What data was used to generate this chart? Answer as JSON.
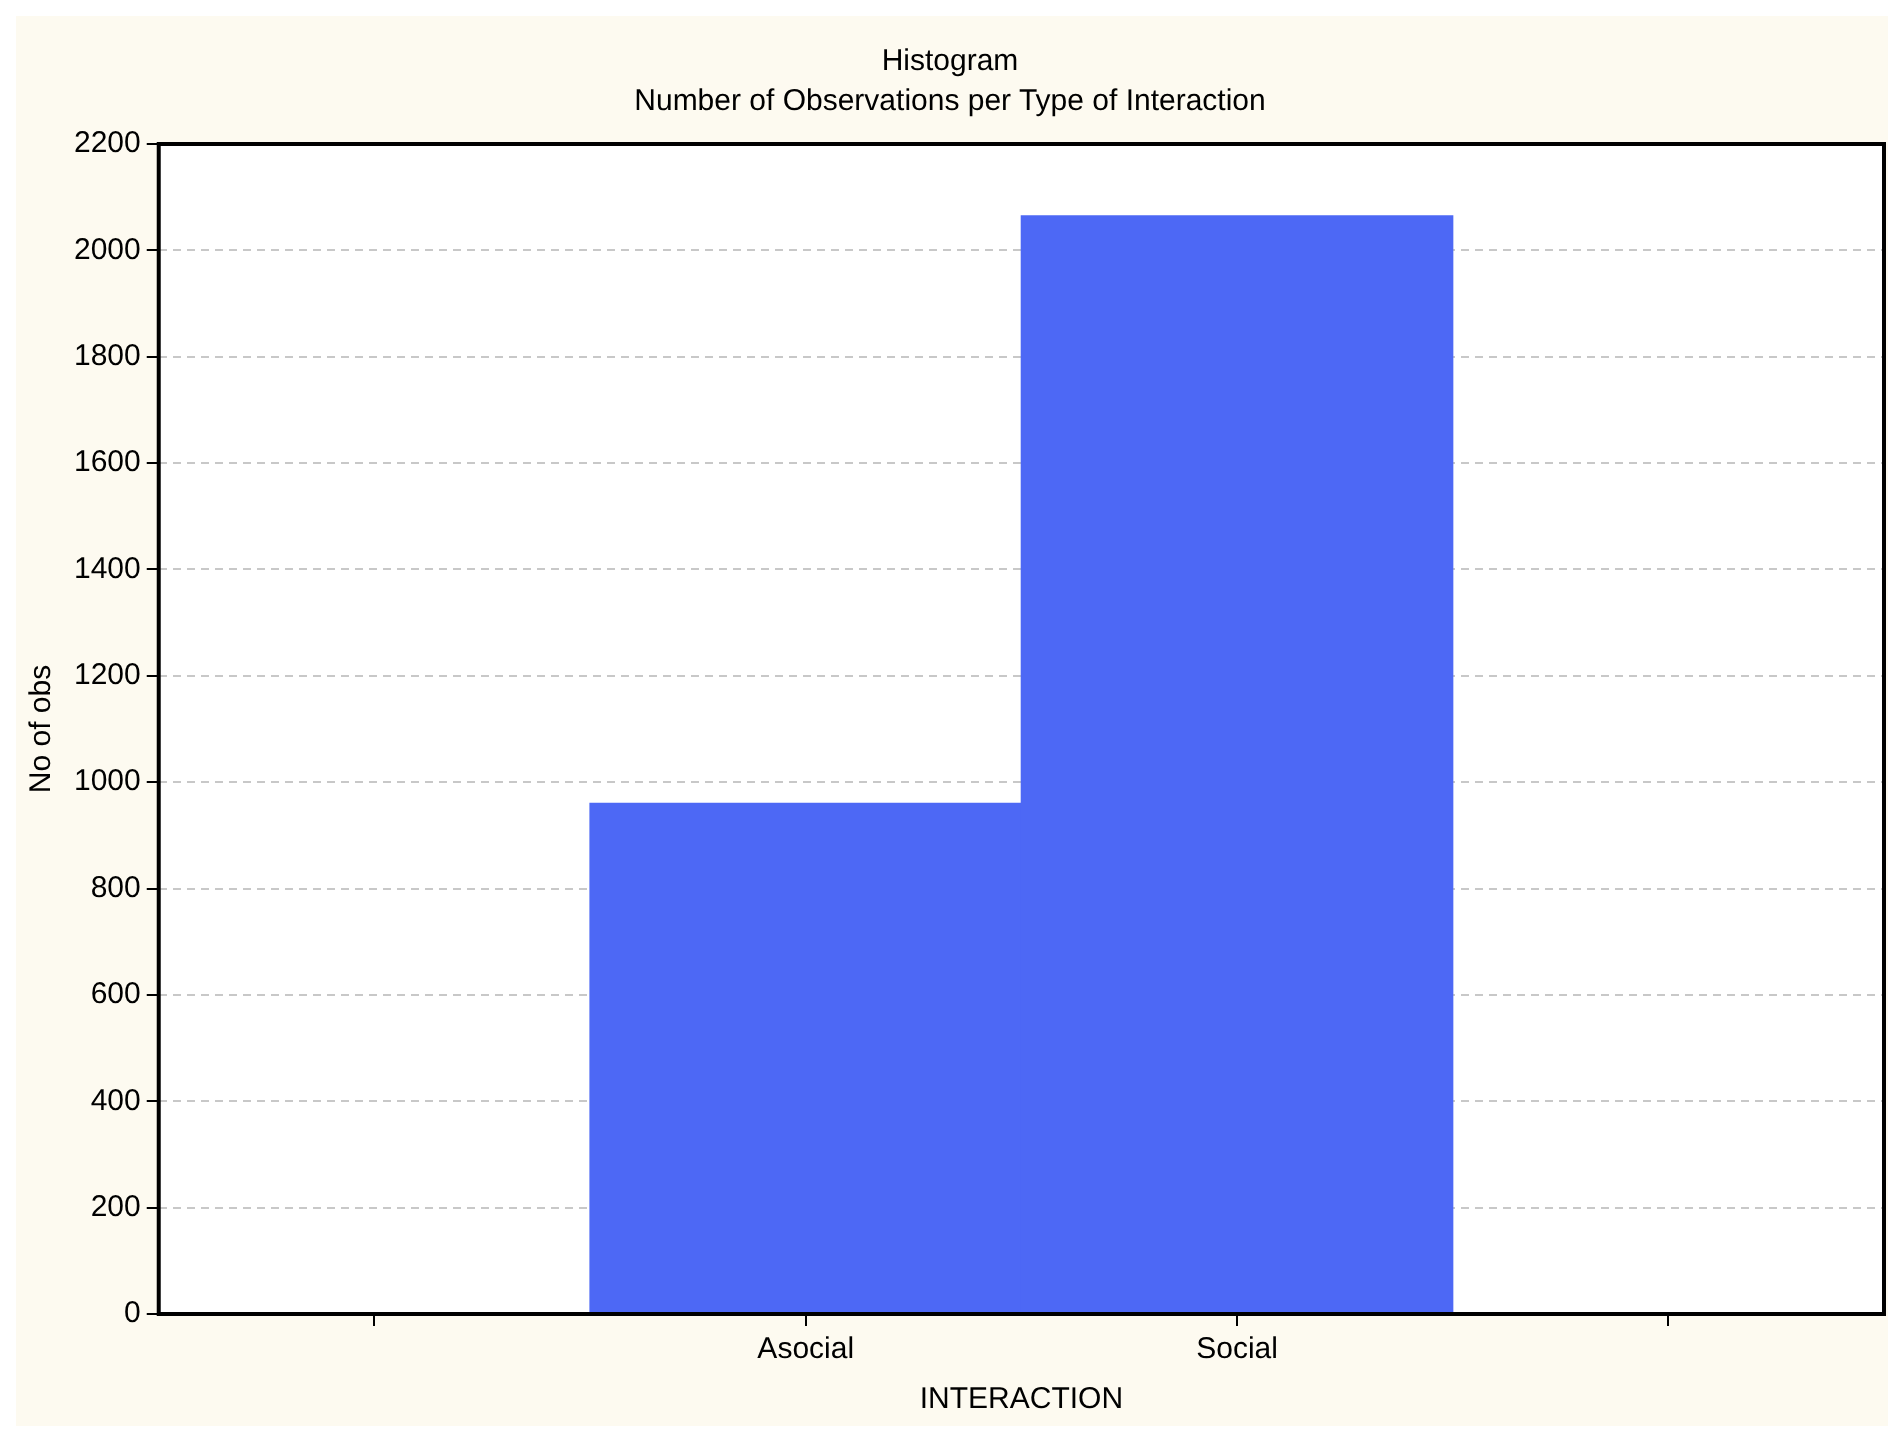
{
  "chart_data": {
    "type": "bar",
    "title": "Histogram",
    "subtitle": "Number of Observations per Type of Interaction",
    "xlabel": "INTERACTION",
    "ylabel": "No of obs",
    "categories": [
      null,
      "Asocial",
      "Social",
      null
    ],
    "values": [
      null,
      960,
      2065,
      null
    ],
    "color": "#4d68f5",
    "ylim": [
      0,
      2200
    ],
    "yticks": [
      0,
      200,
      400,
      600,
      800,
      1000,
      1200,
      1400,
      1600,
      1800,
      2000,
      2200
    ],
    "grid": "y"
  }
}
